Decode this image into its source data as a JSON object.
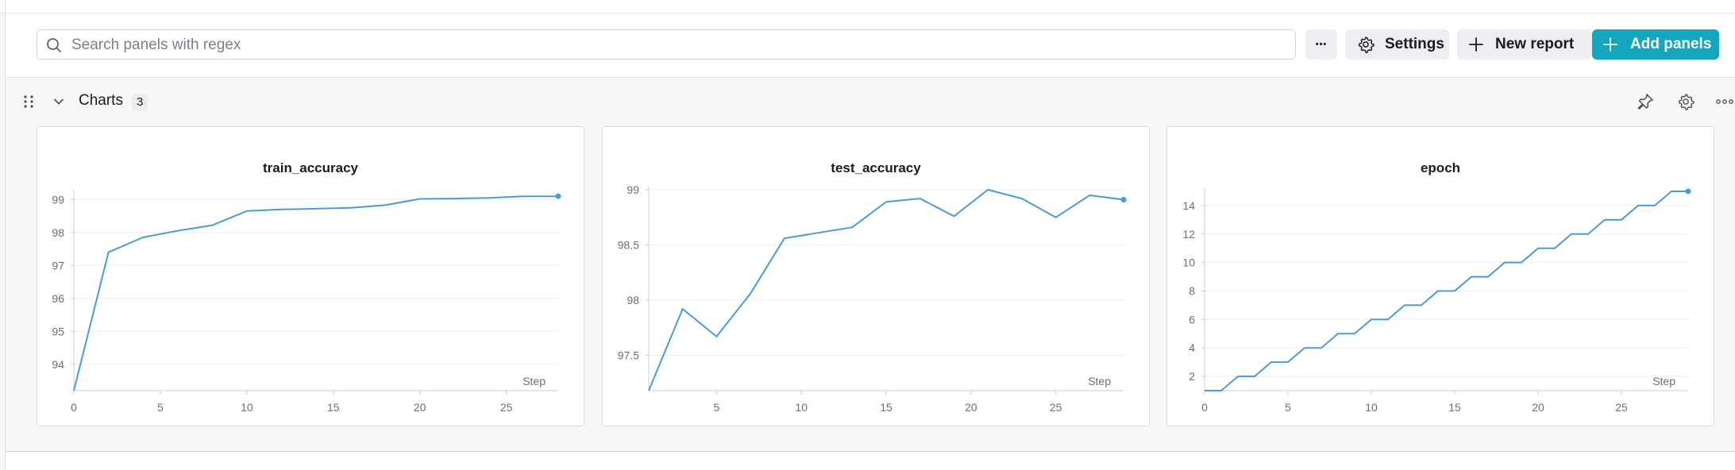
{
  "toolbar": {
    "search_placeholder": "Search panels with regex",
    "more_label": "•••",
    "settings_label": "Settings",
    "new_report_label": "New report",
    "add_panels_label": "Add panels"
  },
  "section": {
    "title": "Charts",
    "count": "3"
  },
  "colors": {
    "accent": "#13a6be",
    "line": "#4a9bd8",
    "grid": "#eceef0"
  },
  "chart_data": [
    {
      "type": "line",
      "title": "train_accuracy",
      "xlabel": "Step",
      "ylabel": "",
      "xlim": [
        0,
        28
      ],
      "ylim": [
        93.2,
        99.2
      ],
      "xticks": [
        0,
        5,
        10,
        15,
        20,
        25
      ],
      "yticks": [
        94,
        95,
        96,
        97,
        98,
        99
      ],
      "x": [
        0,
        2,
        4,
        6,
        8,
        10,
        12,
        14,
        16,
        18,
        20,
        22,
        24,
        26,
        28
      ],
      "y": [
        93.2,
        97.4,
        97.85,
        98.05,
        98.22,
        98.65,
        98.7,
        98.72,
        98.75,
        98.83,
        99.02,
        99.03,
        99.05,
        99.1,
        99.1
      ]
    },
    {
      "type": "line",
      "title": "test_accuracy",
      "xlabel": "Step",
      "ylabel": "",
      "xlim": [
        1,
        29
      ],
      "ylim": [
        97.18,
        99.0
      ],
      "xticks": [
        5,
        10,
        15,
        20,
        25
      ],
      "yticks": [
        97.5,
        98,
        98.5,
        99
      ],
      "ytick_labels": [
        "97.5",
        "98",
        "98.5",
        "99"
      ],
      "x": [
        1,
        3,
        5,
        7,
        9,
        11,
        13,
        15,
        17,
        19,
        21,
        23,
        25,
        27,
        29
      ],
      "y": [
        97.18,
        97.92,
        97.67,
        98.06,
        98.56,
        98.61,
        98.66,
        98.89,
        98.92,
        98.76,
        99.0,
        98.92,
        98.75,
        98.95,
        98.91
      ]
    },
    {
      "type": "line",
      "title": "epoch",
      "xlabel": "Step",
      "ylabel": "",
      "xlim": [
        0,
        29
      ],
      "ylim": [
        1,
        15
      ],
      "xticks": [
        0,
        5,
        10,
        15,
        20,
        25
      ],
      "yticks": [
        2,
        4,
        6,
        8,
        10,
        12,
        14
      ],
      "x": [
        0,
        1,
        2,
        3,
        4,
        5,
        6,
        7,
        8,
        9,
        10,
        11,
        12,
        13,
        14,
        15,
        16,
        17,
        18,
        19,
        20,
        21,
        22,
        23,
        24,
        25,
        26,
        27,
        28,
        29
      ],
      "y": [
        1,
        1,
        2,
        2,
        3,
        3,
        4,
        4,
        5,
        5,
        6,
        6,
        7,
        7,
        8,
        8,
        9,
        9,
        10,
        10,
        11,
        11,
        12,
        12,
        13,
        13,
        14,
        14,
        15,
        15
      ]
    }
  ]
}
